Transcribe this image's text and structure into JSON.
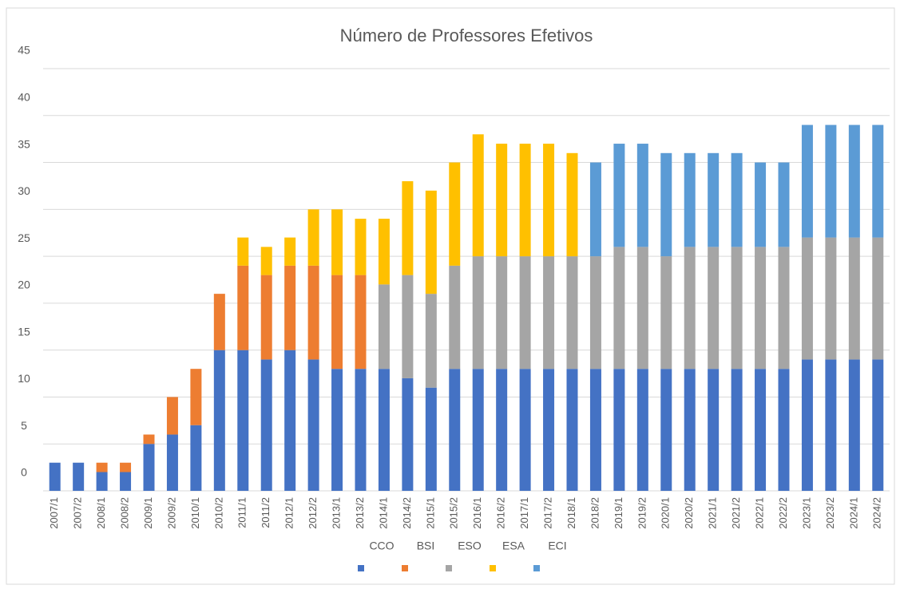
{
  "chart_data": {
    "type": "stacked_bar",
    "title": "Número de Professores Efetivos",
    "categories": [
      "2007/1",
      "2007/2",
      "2008/1",
      "2008/2",
      "2009/1",
      "2009/2",
      "2010/1",
      "2010/2",
      "2011/1",
      "2011/2",
      "2012/1",
      "2012/2",
      "2013/1",
      "2013/2",
      "2014/1",
      "2014/2",
      "2015/1",
      "2015/2",
      "2016/1",
      "2016/2",
      "2017/1",
      "2017/2",
      "2018/1",
      "2018/2",
      "2019/1",
      "2019/2",
      "2020/1",
      "2020/2",
      "2021/1",
      "2021/2",
      "2022/1",
      "2022/2",
      "2023/1",
      "2023/2",
      "2024/1",
      "2024/2"
    ],
    "series": [
      {
        "name": "CCO",
        "color": "#4472c4",
        "values": [
          3,
          3,
          2,
          2,
          5,
          6,
          7,
          15,
          15,
          14,
          15,
          14,
          13,
          13,
          13,
          12,
          11,
          13,
          13,
          13,
          13,
          13,
          13,
          13,
          13,
          13,
          13,
          13,
          13,
          13,
          13,
          13,
          14,
          14,
          14,
          14
        ]
      },
      {
        "name": "BSI",
        "color": "#ed7d31",
        "values": [
          null,
          null,
          1,
          1,
          1,
          4,
          6,
          6,
          9,
          9,
          9,
          10,
          10,
          10,
          null,
          null,
          null,
          null,
          null,
          null,
          null,
          null,
          null,
          null,
          null,
          null,
          null,
          null,
          null,
          null,
          null,
          null,
          null,
          null,
          null,
          null
        ]
      },
      {
        "name": "ESO",
        "color": "#a5a5a5",
        "values": [
          null,
          null,
          null,
          null,
          null,
          null,
          null,
          null,
          null,
          null,
          null,
          null,
          null,
          null,
          9,
          11,
          10,
          11,
          12,
          12,
          12,
          12,
          12,
          12,
          13,
          13,
          12,
          13,
          13,
          13,
          13,
          13,
          13,
          13,
          13,
          13
        ]
      },
      {
        "name": "ESA",
        "color": "#ffc000",
        "values": [
          null,
          null,
          null,
          null,
          null,
          null,
          null,
          null,
          3,
          3,
          3,
          6,
          7,
          6,
          7,
          10,
          11,
          11,
          13,
          12,
          12,
          12,
          11,
          null,
          null,
          null,
          null,
          null,
          null,
          null,
          null,
          null,
          null,
          null,
          null,
          null
        ]
      },
      {
        "name": "ECI",
        "color": "#5b9bd5",
        "values": [
          null,
          null,
          null,
          null,
          null,
          null,
          null,
          null,
          null,
          null,
          null,
          null,
          null,
          null,
          null,
          null,
          null,
          null,
          null,
          null,
          null,
          null,
          null,
          10,
          11,
          11,
          11,
          10,
          10,
          10,
          9,
          9,
          12,
          12,
          12,
          12
        ]
      }
    ],
    "ylim": [
      0,
      45
    ],
    "yticks": [
      0,
      5,
      10,
      15,
      20,
      25,
      30,
      35,
      40,
      45
    ],
    "grid": true,
    "legend": "bottom"
  }
}
